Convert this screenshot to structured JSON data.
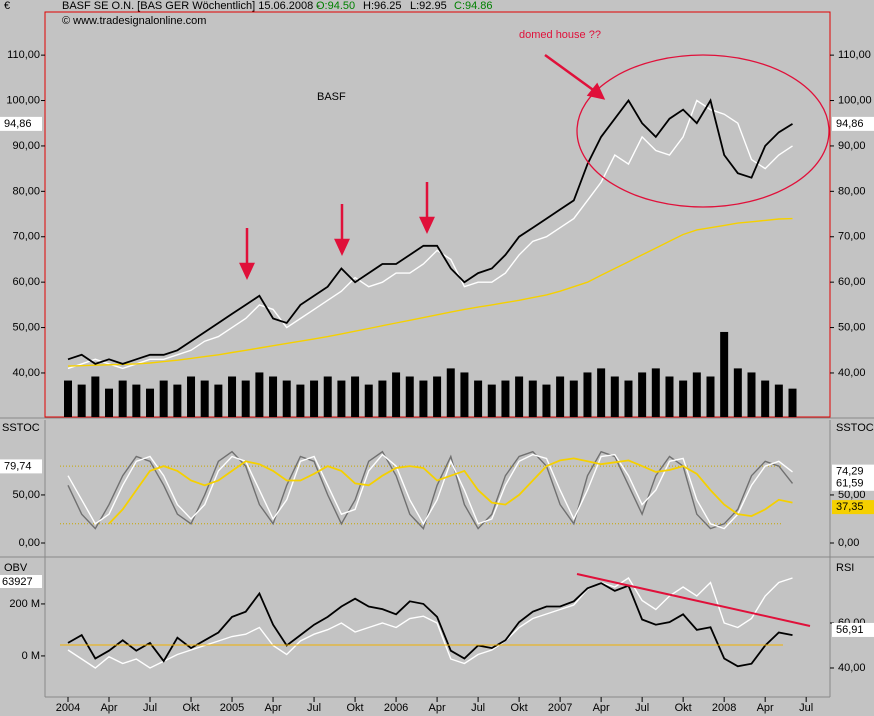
{
  "header": {
    "symbol": "BASF SE O.N. [BAS GER  Wöchentlich] 15.06.2008 -",
    "open": "O:94.50",
    "high": "H:96.25",
    "low": "L:92.95",
    "close": "C:94.86",
    "copyright": "© www.tradesignalonline.com"
  },
  "chart_data": [
    {
      "type": "line",
      "title": "BASF",
      "annotation": "domed house ??",
      "axis_label": "€",
      "x": [
        "2004-01",
        "2004-02",
        "2004-03",
        "2004-04",
        "2004-05",
        "2004-06",
        "2004-07",
        "2004-08",
        "2004-09",
        "2004-10",
        "2004-11",
        "2004-12",
        "2005-01",
        "2005-02",
        "2005-03",
        "2005-04",
        "2005-05",
        "2005-06",
        "2005-07",
        "2005-08",
        "2005-09",
        "2005-10",
        "2005-11",
        "2005-12",
        "2006-01",
        "2006-02",
        "2006-03",
        "2006-04",
        "2006-05",
        "2006-06",
        "2006-07",
        "2006-08",
        "2006-09",
        "2006-10",
        "2006-11",
        "2006-12",
        "2007-01",
        "2007-02",
        "2007-03",
        "2007-04",
        "2007-05",
        "2007-06",
        "2007-07",
        "2007-08",
        "2007-09",
        "2007-10",
        "2007-11",
        "2007-12",
        "2008-01",
        "2008-02",
        "2008-03",
        "2008-04",
        "2008-05",
        "2008-06"
      ],
      "ylim": [
        30.3,
        119.5
      ],
      "yticks": [
        {
          "value": 40,
          "label": "40,00"
        },
        {
          "value": 50,
          "label": "50,00"
        },
        {
          "value": 60,
          "label": "60,00"
        },
        {
          "value": 70,
          "label": "70,00"
        },
        {
          "value": 80,
          "label": "80,00"
        },
        {
          "value": 90,
          "label": "90,00"
        },
        {
          "value": 100,
          "label": "100,00"
        },
        {
          "value": 110,
          "label": "110,00"
        }
      ],
      "series": [
        {
          "color": "#ffffff",
          "values": [
            41,
            42,
            43,
            42,
            41,
            42,
            43,
            43,
            44,
            45,
            47,
            48,
            50,
            52,
            55,
            54,
            50,
            52,
            54,
            56,
            58,
            61,
            59,
            60,
            62,
            62,
            64,
            67,
            65,
            59,
            60,
            60,
            62,
            66,
            69,
            70,
            72,
            74,
            78,
            82,
            88,
            86,
            92,
            89,
            88,
            92,
            100,
            98,
            97,
            95,
            87,
            85,
            88,
            90
          ]
        },
        {
          "color": "#f5d000",
          "values": [
            41.5,
            41.6,
            41.7,
            41.8,
            41.9,
            42,
            42.2,
            42.5,
            42.8,
            43.2,
            43.6,
            44,
            44.5,
            45,
            45.5,
            46,
            46.5,
            47,
            47.5,
            48,
            48.6,
            49.2,
            49.8,
            50.4,
            51,
            51.6,
            52.2,
            52.8,
            53.4,
            54,
            54.5,
            55,
            55.5,
            56,
            56.6,
            57.2,
            58,
            59,
            60,
            61.5,
            63,
            64.5,
            66,
            67.5,
            69,
            70.5,
            71.5,
            72,
            72.5,
            73,
            73.3,
            73.6,
            73.9,
            74
          ]
        },
        {
          "color": "#000000",
          "values": [
            43,
            44,
            42,
            43,
            42,
            43,
            44,
            44,
            45,
            47,
            49,
            51,
            53,
            55,
            57,
            52,
            51,
            55,
            57,
            59,
            63,
            60,
            62,
            64,
            64,
            66,
            68,
            68,
            63,
            60,
            62,
            63,
            66,
            70,
            72,
            74,
            76,
            78,
            86,
            92,
            96,
            100,
            95,
            92,
            96,
            98,
            95,
            100,
            88,
            84,
            83,
            90,
            93,
            94.86
          ]
        }
      ],
      "volume": {
        "color": "#000000",
        "lim": [
          0,
          100
        ],
        "values": [
          9,
          8,
          10,
          7,
          9,
          8,
          7,
          9,
          8,
          10,
          9,
          8,
          10,
          9,
          11,
          10,
          9,
          8,
          9,
          10,
          9,
          10,
          8,
          9,
          11,
          10,
          9,
          10,
          12,
          11,
          9,
          8,
          9,
          10,
          9,
          8,
          10,
          9,
          11,
          12,
          10,
          9,
          11,
          12,
          10,
          9,
          11,
          10,
          21,
          12,
          11,
          9,
          8,
          7
        ]
      },
      "markers": [
        {
          "value": 94.86,
          "label": "94,86",
          "side": "left",
          "color": "#ffffff"
        },
        {
          "value": 94.86,
          "label": "94,86",
          "side": "right",
          "color": "#ffffff"
        }
      ]
    },
    {
      "type": "line",
      "axis_label": "SSTOC",
      "axis_label_right": "SSTOC",
      "ylim": [
        -12.5,
        128
      ],
      "yticks": [
        {
          "value": 0,
          "label": "0,00"
        },
        {
          "value": 50,
          "label": "50,00"
        }
      ],
      "levels": [
        80,
        20
      ],
      "series": [
        {
          "color": "#707070",
          "values": [
            60,
            30,
            15,
            40,
            70,
            90,
            85,
            60,
            30,
            20,
            50,
            85,
            95,
            80,
            40,
            20,
            60,
            90,
            85,
            50,
            20,
            45,
            85,
            95,
            70,
            30,
            15,
            60,
            90,
            40,
            15,
            30,
            70,
            90,
            95,
            80,
            40,
            20,
            70,
            95,
            90,
            60,
            30,
            70,
            90,
            80,
            30,
            15,
            20,
            35,
            70,
            85,
            80,
            62
          ]
        },
        {
          "color": "#ffffff",
          "values": [
            70,
            45,
            20,
            30,
            60,
            85,
            90,
            70,
            40,
            25,
            40,
            75,
            90,
            85,
            55,
            25,
            45,
            85,
            90,
            60,
            30,
            35,
            75,
            92,
            80,
            45,
            20,
            45,
            85,
            55,
            20,
            25,
            60,
            85,
            92,
            88,
            55,
            25,
            55,
            90,
            92,
            70,
            40,
            55,
            85,
            88,
            45,
            20,
            15,
            30,
            60,
            80,
            85,
            74
          ]
        },
        {
          "color": "#f5d000",
          "values": [
            null,
            null,
            null,
            20,
            35,
            55,
            75,
            80,
            75,
            65,
            60,
            65,
            75,
            85,
            82,
            75,
            65,
            65,
            72,
            80,
            75,
            62,
            60,
            70,
            78,
            80,
            78,
            65,
            70,
            75,
            55,
            42,
            40,
            50,
            65,
            80,
            86,
            88,
            85,
            82,
            84,
            86,
            80,
            74,
            76,
            80,
            72,
            55,
            40,
            30,
            28,
            35,
            45,
            42
          ]
        }
      ],
      "markers": [
        {
          "value": 79.74,
          "label": "79,74",
          "side": "left",
          "color": "#ffffff"
        },
        {
          "value": 74.29,
          "label": "74,29",
          "side": "right",
          "color": "#ffffff"
        },
        {
          "value": 61.59,
          "label": "61,59",
          "side": "right",
          "color": "#ffffff"
        },
        {
          "value": 37.35,
          "label": "37,35",
          "side": "right",
          "color": "#f5d000"
        }
      ]
    },
    {
      "type": "line",
      "axis_label": "OBV",
      "axis_label_right": "RSI",
      "obv_last": "63927",
      "ylim": [
        -158,
        369
      ],
      "y2lim": [
        27.1,
        88
      ],
      "yticks": [
        {
          "value": 0,
          "label": "0 M"
        },
        {
          "value": 200,
          "label": "200 M"
        }
      ],
      "y2ticks": [
        {
          "value": 40,
          "label": "40,00"
        },
        {
          "value": 60,
          "label": "60,00"
        }
      ],
      "xticks": [
        {
          "value": "2004-01",
          "label": "2004"
        },
        {
          "value": "2004-04",
          "label": "Apr"
        },
        {
          "value": "2004-07",
          "label": "Jul"
        },
        {
          "value": "2004-10",
          "label": "Okt"
        },
        {
          "value": "2005-01",
          "label": "2005"
        },
        {
          "value": "2005-04",
          "label": "Apr"
        },
        {
          "value": "2005-07",
          "label": "Jul"
        },
        {
          "value": "2005-10",
          "label": "Okt"
        },
        {
          "value": "2006-01",
          "label": "2006"
        },
        {
          "value": "2006-04",
          "label": "Apr"
        },
        {
          "value": "2006-07",
          "label": "Jul"
        },
        {
          "value": "2006-10",
          "label": "Okt"
        },
        {
          "value": "2007-01",
          "label": "2007"
        },
        {
          "value": "2007-04",
          "label": "Apr"
        },
        {
          "value": "2007-07",
          "label": "Jul"
        },
        {
          "value": "2007-10",
          "label": "Okt"
        },
        {
          "value": "2008-01",
          "label": "2008"
        },
        {
          "value": "2008-04",
          "label": "Apr"
        },
        {
          "value": "2008-07",
          "label": "Jul"
        }
      ],
      "series": [
        {
          "color": "#ffffff",
          "axis": "y2",
          "values": [
            48,
            44,
            40,
            45,
            42,
            44,
            40,
            43,
            46,
            48,
            50,
            52,
            54,
            55,
            58,
            50,
            46,
            52,
            55,
            57,
            60,
            56,
            58,
            60,
            58,
            62,
            63,
            60,
            44,
            42,
            46,
            48,
            52,
            58,
            62,
            64,
            66,
            68,
            75,
            78,
            76,
            80,
            70,
            66,
            72,
            76,
            72,
            78,
            60,
            58,
            62,
            72,
            78,
            80
          ]
        },
        {
          "color": "#000000",
          "values": [
            50,
            80,
            -10,
            20,
            60,
            20,
            50,
            -20,
            70,
            30,
            60,
            90,
            150,
            170,
            240,
            120,
            40,
            80,
            120,
            150,
            190,
            220,
            190,
            180,
            160,
            210,
            200,
            150,
            20,
            -10,
            40,
            30,
            60,
            130,
            170,
            190,
            190,
            210,
            260,
            280,
            250,
            270,
            140,
            120,
            130,
            160,
            100,
            110,
            -10,
            -40,
            -30,
            40,
            90,
            80
          ]
        }
      ],
      "markers": [
        {
          "value": 56.91,
          "label": "56,91",
          "side": "right",
          "color": "#ffffff",
          "axis": "y2"
        }
      ]
    }
  ]
}
